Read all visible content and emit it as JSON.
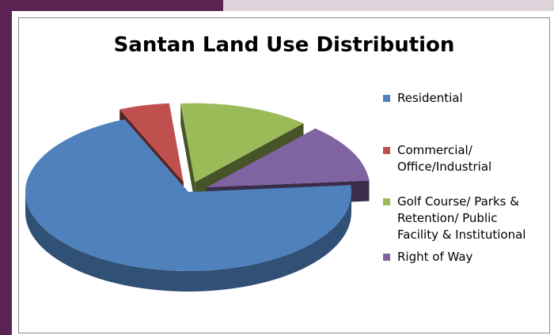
{
  "theme": {
    "frame_dark": "#5a2352",
    "frame_light": "#dcd3db"
  },
  "chart_data": {
    "type": "pie",
    "title": "Santan Land Use Distribution",
    "start_angle_deg": -5,
    "exploded": true,
    "three_d": true,
    "legend_position": "right",
    "slices": [
      {
        "label": "Residential",
        "value": 70,
        "color": "#4f81bd"
      },
      {
        "label": "Commercial/\nOffice/Industrial",
        "value": 5,
        "color": "#c0504d"
      },
      {
        "label": "Golf Course/ Parks &\nRetention/ Public\nFacility & Institutional",
        "value": 13,
        "color": "#9bbb59"
      },
      {
        "label": "Right of Way",
        "value": 12,
        "color": "#8064a2"
      }
    ]
  }
}
